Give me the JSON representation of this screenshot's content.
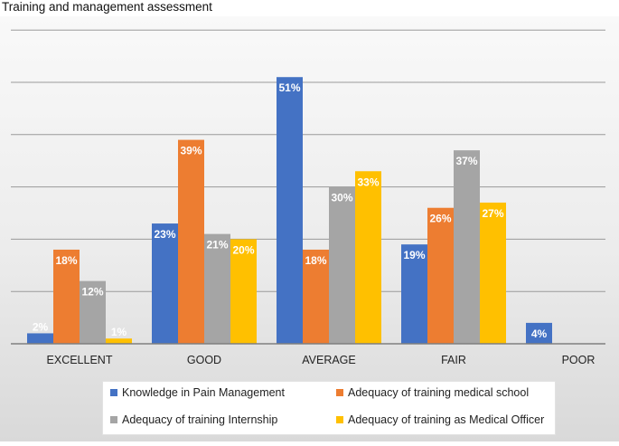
{
  "title": "Training and management assessment",
  "chart_data": {
    "type": "bar",
    "title": "Training and management assessment",
    "xlabel": "",
    "ylabel": "",
    "ylim": [
      0,
      60
    ],
    "grid": true,
    "legend_position": "bottom",
    "categories": [
      "EXCELLENT",
      "GOOD",
      "AVERAGE",
      "FAIR",
      "POOR"
    ],
    "series": [
      {
        "name": "Knowledge in Pain Management",
        "color": "#4472C4",
        "values": [
          2,
          23,
          51,
          19,
          4
        ],
        "labels": [
          "2%",
          "23%",
          "51%",
          "19%",
          "4%"
        ]
      },
      {
        "name": "Adequacy of training medical school",
        "color": "#ED7D31",
        "values": [
          18,
          39,
          18,
          26,
          null
        ],
        "labels": [
          "18%",
          "39%",
          "18%",
          "26%",
          ""
        ]
      },
      {
        "name": "Adequacy of training Internship",
        "color": "#A5A5A5",
        "values": [
          12,
          21,
          30,
          37,
          null
        ],
        "labels": [
          "12%",
          "21%",
          "30%",
          "37%",
          ""
        ]
      },
      {
        "name": "Adequacy of training as Medical Officer",
        "color": "#FFC000",
        "values": [
          1,
          20,
          33,
          27,
          null
        ],
        "labels": [
          "1%",
          "20%",
          "33%",
          "27%",
          ""
        ]
      }
    ]
  }
}
